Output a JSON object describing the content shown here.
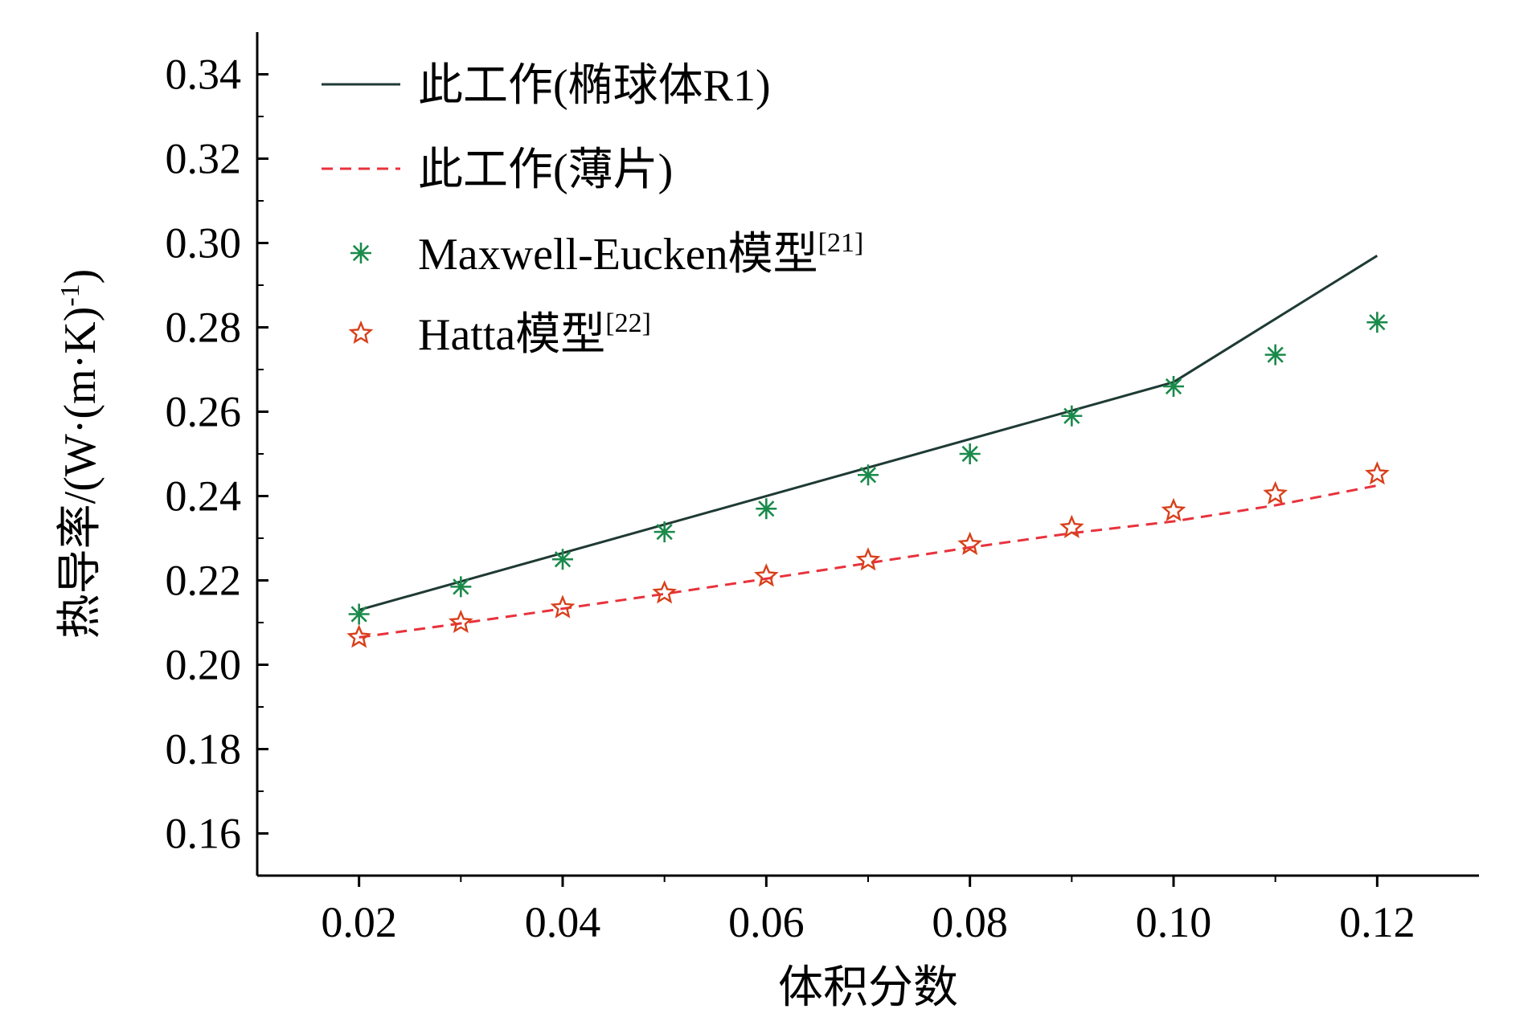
{
  "chart_data": {
    "type": "line",
    "title": "",
    "xlabel": "体积分数",
    "ylabel": "热导率/(W·(m·K)",
    "ylabel_sup": "-1",
    "ylabel_end": ")",
    "xlim": [
      0.01,
      0.13
    ],
    "ylim": [
      0.15,
      0.35
    ],
    "x_ticks": [
      "0.02",
      "0.04",
      "0.06",
      "0.08",
      "0.10",
      "0.12"
    ],
    "y_ticks": [
      "0.16",
      "0.18",
      "0.20",
      "0.22",
      "0.24",
      "0.26",
      "0.28",
      "0.30",
      "0.32",
      "0.34"
    ],
    "legend_position": "top-left",
    "series": [
      {
        "name": "此工作(椭球体R1)",
        "style": "solid-line",
        "color": "#1f3a34",
        "x": [
          0.02,
          0.1,
          0.12
        ],
        "y": [
          0.213,
          0.267,
          0.297
        ]
      },
      {
        "name": "此工作(薄片)",
        "style": "dashed-line",
        "color": "#e8323c",
        "x": [
          0.02,
          0.03,
          0.04,
          0.05,
          0.06,
          0.07,
          0.08,
          0.09,
          0.1,
          0.11,
          0.12
        ],
        "y": [
          0.2065,
          0.2098,
          0.2133,
          0.2168,
          0.2204,
          0.2241,
          0.2278,
          0.2312,
          0.234,
          0.2378,
          0.2425
        ]
      },
      {
        "name": "Maxwell-Eucken模型",
        "name_sup": "[21]",
        "style": "asterisk-marker",
        "color": "#1a8a4a",
        "x": [
          0.02,
          0.03,
          0.04,
          0.05,
          0.06,
          0.07,
          0.08,
          0.09,
          0.1,
          0.11,
          0.12
        ],
        "y": [
          0.212,
          0.2185,
          0.225,
          0.2315,
          0.237,
          0.245,
          0.25,
          0.259,
          0.266,
          0.2735,
          0.2812
        ]
      },
      {
        "name": "Hatta模型",
        "name_sup": "[22]",
        "style": "star-marker",
        "color": "#d8401a",
        "x": [
          0.02,
          0.03,
          0.04,
          0.05,
          0.06,
          0.07,
          0.08,
          0.09,
          0.1,
          0.11,
          0.12
        ],
        "y": [
          0.2065,
          0.21,
          0.2135,
          0.217,
          0.221,
          0.2248,
          0.2285,
          0.2325,
          0.2365,
          0.2405,
          0.2452
        ]
      }
    ]
  }
}
